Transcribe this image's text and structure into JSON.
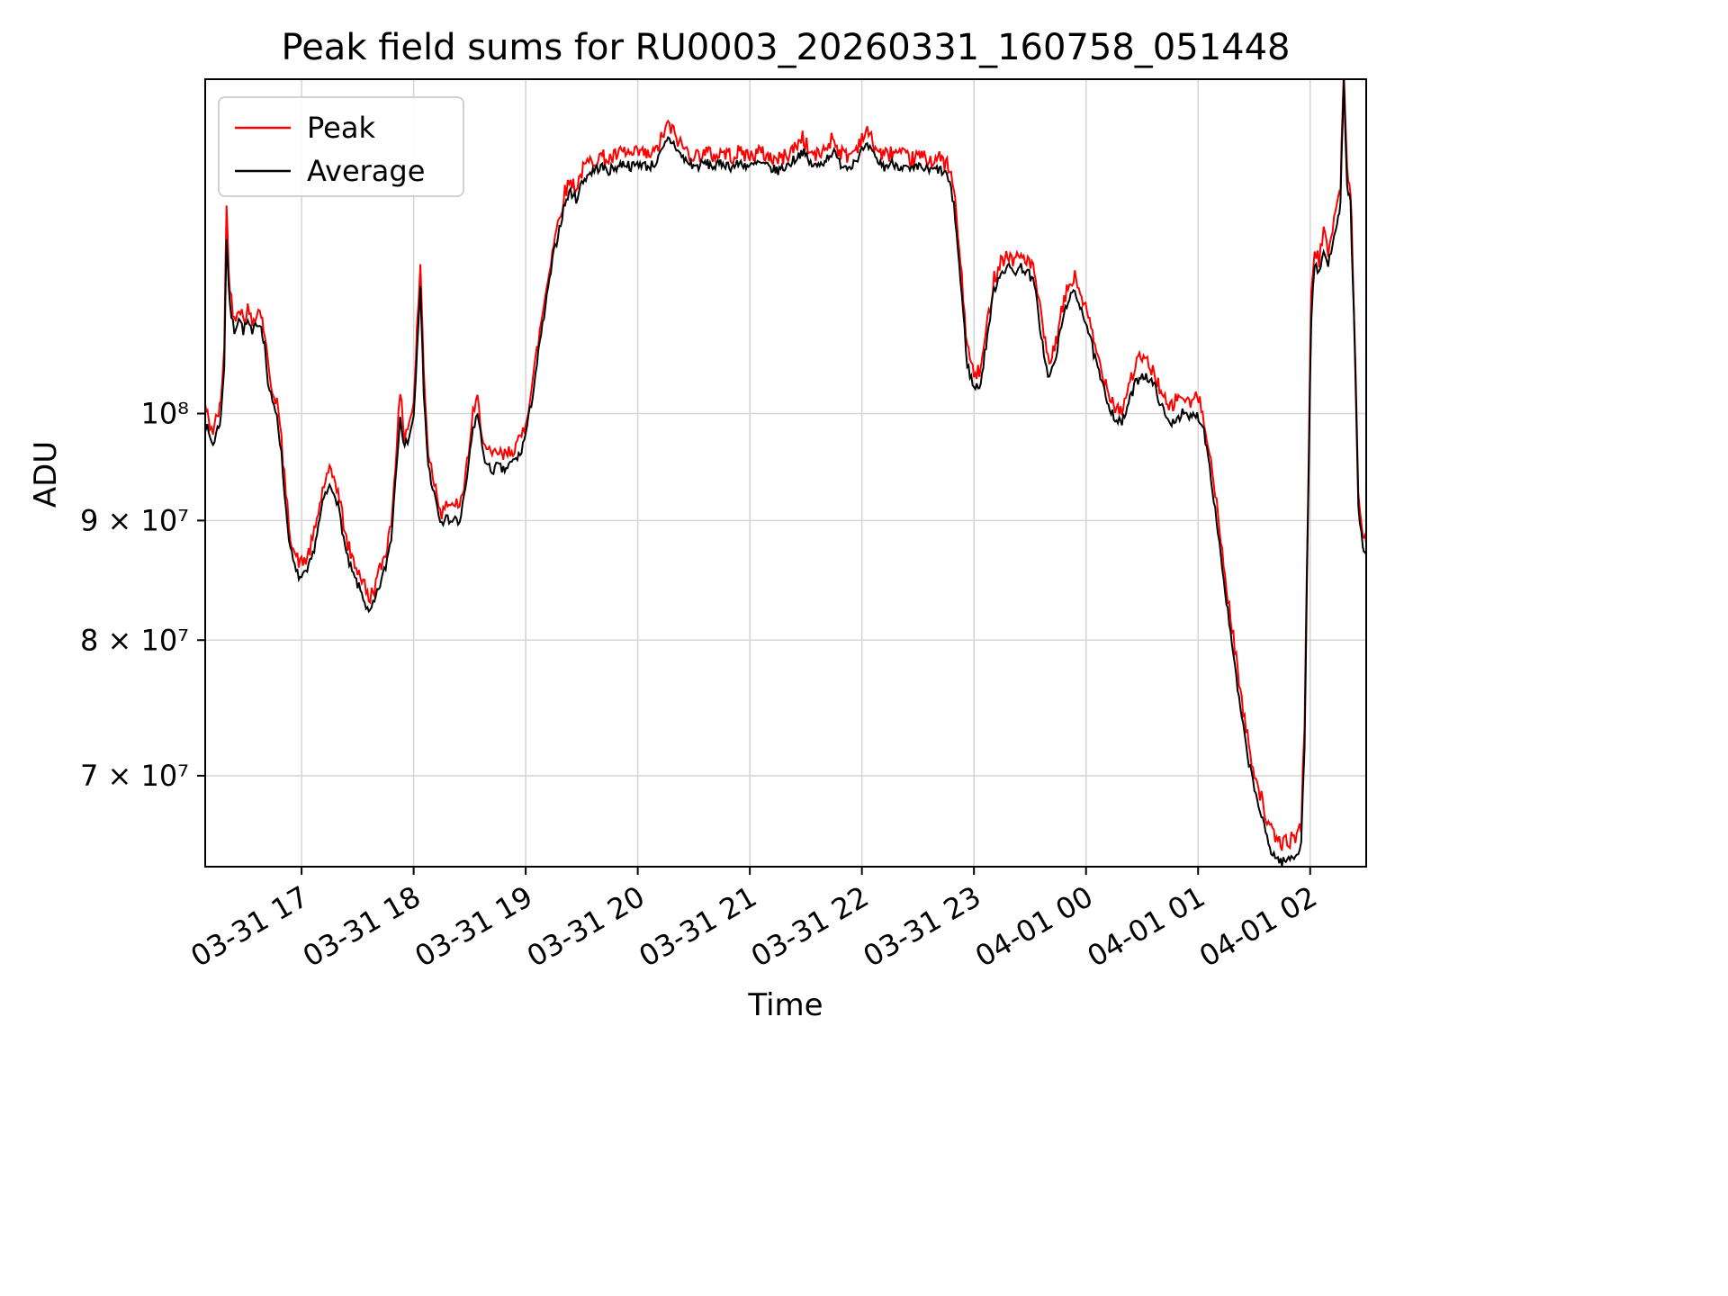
{
  "chart_data": {
    "type": "line",
    "title": "Peak field sums for RU0003_20260331_160758_051448",
    "xlabel": "Time",
    "ylabel": "ADU",
    "yscale": "log",
    "grid": true,
    "legend_position": "upper left",
    "value_scale": 10000000,
    "xlim": [
      16.14,
      26.5
    ],
    "ylim": [
      64000000,
      139000000
    ],
    "xticks": [
      {
        "hour": 17,
        "label": "03-31 17"
      },
      {
        "hour": 18,
        "label": "03-31 18"
      },
      {
        "hour": 19,
        "label": "03-31 19"
      },
      {
        "hour": 20,
        "label": "03-31 20"
      },
      {
        "hour": 21,
        "label": "03-31 21"
      },
      {
        "hour": 22,
        "label": "03-31 22"
      },
      {
        "hour": 23,
        "label": "03-31 23"
      },
      {
        "hour": 24,
        "label": "04-01 00"
      },
      {
        "hour": 25,
        "label": "04-01 01"
      },
      {
        "hour": 26,
        "label": "04-01 02"
      }
    ],
    "yticks": [
      {
        "value": 100000000,
        "label": "10⁸"
      },
      {
        "value": 90000000,
        "label": "9 × 10⁷"
      },
      {
        "value": 80000000,
        "label": "8 × 10⁷"
      },
      {
        "value": 70000000,
        "label": "7 × 10⁷"
      }
    ],
    "series_meta": [
      {
        "name": "Peak",
        "color": "#ff0000",
        "width": 2,
        "noise_amp": 0.008,
        "noise_bias": 0.003
      },
      {
        "name": "Average",
        "color": "#000000",
        "width": 2,
        "noise_amp": 0.005,
        "noise_bias": 0.0
      }
    ],
    "points_format": [
      "hour",
      "average_1e7ADU",
      "peak_1e7ADU"
    ],
    "points": [
      [
        16.14,
        9.95,
        10.05
      ],
      [
        16.17,
        9.8,
        9.9
      ],
      [
        16.21,
        9.7,
        9.8
      ],
      [
        16.25,
        9.85,
        9.95
      ],
      [
        16.28,
        9.95,
        10.05
      ],
      [
        16.31,
        10.5,
        10.7
      ],
      [
        16.33,
        11.9,
        12.2
      ],
      [
        16.36,
        11.1,
        11.25
      ],
      [
        16.4,
        10.85,
        10.95
      ],
      [
        16.44,
        11.0,
        11.1
      ],
      [
        16.48,
        10.85,
        10.95
      ],
      [
        16.52,
        10.95,
        11.05
      ],
      [
        16.56,
        10.8,
        10.9
      ],
      [
        16.6,
        10.95,
        11.05
      ],
      [
        16.64,
        10.9,
        11.0
      ],
      [
        16.67,
        10.7,
        10.8
      ],
      [
        16.7,
        10.3,
        10.45
      ],
      [
        16.74,
        10.1,
        10.2
      ],
      [
        16.78,
        10.0,
        10.1
      ],
      [
        16.82,
        9.6,
        9.7
      ],
      [
        16.86,
        9.1,
        9.2
      ],
      [
        16.9,
        8.75,
        8.85
      ],
      [
        16.95,
        8.55,
        8.65
      ],
      [
        17.0,
        8.5,
        8.6
      ],
      [
        17.05,
        8.55,
        8.65
      ],
      [
        17.1,
        8.7,
        8.8
      ],
      [
        17.15,
        8.95,
        9.05
      ],
      [
        17.2,
        9.2,
        9.3
      ],
      [
        17.25,
        9.3,
        9.4
      ],
      [
        17.3,
        9.25,
        9.35
      ],
      [
        17.35,
        9.0,
        9.1
      ],
      [
        17.4,
        8.7,
        8.8
      ],
      [
        17.45,
        8.55,
        8.65
      ],
      [
        17.5,
        8.45,
        8.55
      ],
      [
        17.55,
        8.35,
        8.45
      ],
      [
        17.6,
        8.2,
        8.3
      ],
      [
        17.65,
        8.3,
        8.4
      ],
      [
        17.7,
        8.45,
        8.55
      ],
      [
        17.75,
        8.6,
        8.7
      ],
      [
        17.8,
        8.85,
        8.95
      ],
      [
        17.85,
        9.55,
        9.7
      ],
      [
        17.88,
        10.0,
        10.15
      ],
      [
        17.92,
        9.65,
        9.75
      ],
      [
        17.96,
        9.8,
        9.9
      ],
      [
        18.0,
        9.95,
        10.05
      ],
      [
        18.03,
        10.6,
        10.8
      ],
      [
        18.06,
        11.3,
        11.55
      ],
      [
        18.09,
        10.2,
        10.4
      ],
      [
        18.13,
        9.5,
        9.6
      ],
      [
        18.17,
        9.3,
        9.4
      ],
      [
        18.21,
        9.1,
        9.2
      ],
      [
        18.25,
        8.95,
        9.05
      ],
      [
        18.29,
        9.05,
        9.15
      ],
      [
        18.33,
        8.95,
        9.05
      ],
      [
        18.37,
        9.05,
        9.15
      ],
      [
        18.41,
        8.95,
        9.05
      ],
      [
        18.45,
        9.2,
        9.3
      ],
      [
        18.49,
        9.5,
        9.6
      ],
      [
        18.53,
        9.85,
        9.95
      ],
      [
        18.57,
        10.0,
        10.1
      ],
      [
        18.61,
        9.7,
        9.8
      ],
      [
        18.65,
        9.5,
        9.6
      ],
      [
        18.7,
        9.45,
        9.55
      ],
      [
        18.75,
        9.5,
        9.6
      ],
      [
        18.8,
        9.45,
        9.55
      ],
      [
        18.85,
        9.5,
        9.6
      ],
      [
        18.9,
        9.55,
        9.65
      ],
      [
        18.95,
        9.6,
        9.7
      ],
      [
        19.0,
        9.8,
        9.9
      ],
      [
        19.05,
        10.1,
        10.2
      ],
      [
        19.1,
        10.5,
        10.6
      ],
      [
        19.15,
        10.9,
        11.0
      ],
      [
        19.2,
        11.3,
        11.4
      ],
      [
        19.25,
        11.7,
        11.8
      ],
      [
        19.3,
        12.0,
        12.1
      ],
      [
        19.35,
        12.3,
        12.4
      ],
      [
        19.4,
        12.45,
        12.55
      ],
      [
        19.45,
        12.35,
        12.45
      ],
      [
        19.5,
        12.55,
        12.65
      ],
      [
        19.55,
        12.65,
        12.75
      ],
      [
        19.6,
        12.7,
        12.8
      ],
      [
        19.67,
        12.75,
        12.85
      ],
      [
        19.74,
        12.7,
        12.8
      ],
      [
        19.81,
        12.75,
        12.85
      ],
      [
        19.88,
        12.8,
        12.9
      ],
      [
        19.95,
        12.75,
        12.85
      ],
      [
        20.02,
        12.8,
        12.9
      ],
      [
        20.09,
        12.75,
        12.85
      ],
      [
        20.16,
        12.8,
        12.9
      ],
      [
        20.22,
        12.95,
        13.1
      ],
      [
        20.27,
        13.1,
        13.25
      ],
      [
        20.32,
        13.05,
        13.15
      ],
      [
        20.38,
        12.9,
        13.0
      ],
      [
        20.45,
        12.8,
        12.9
      ],
      [
        20.52,
        12.75,
        12.85
      ],
      [
        20.6,
        12.8,
        12.9
      ],
      [
        20.68,
        12.75,
        12.85
      ],
      [
        20.76,
        12.8,
        12.9
      ],
      [
        20.84,
        12.75,
        12.85
      ],
      [
        20.92,
        12.8,
        12.9
      ],
      [
        21.0,
        12.75,
        12.85
      ],
      [
        21.08,
        12.8,
        12.9
      ],
      [
        21.16,
        12.75,
        12.85
      ],
      [
        21.24,
        12.7,
        12.8
      ],
      [
        21.32,
        12.75,
        12.85
      ],
      [
        21.4,
        12.85,
        12.95
      ],
      [
        21.47,
        12.95,
        13.1
      ],
      [
        21.53,
        12.8,
        12.9
      ],
      [
        21.6,
        12.75,
        12.85
      ],
      [
        21.68,
        12.85,
        12.95
      ],
      [
        21.74,
        12.95,
        13.1
      ],
      [
        21.8,
        12.8,
        12.9
      ],
      [
        21.88,
        12.75,
        12.85
      ],
      [
        21.95,
        12.85,
        12.95
      ],
      [
        22.0,
        12.95,
        13.1
      ],
      [
        22.06,
        13.0,
        13.15
      ],
      [
        22.12,
        12.85,
        12.95
      ],
      [
        22.2,
        12.75,
        12.85
      ],
      [
        22.28,
        12.8,
        12.9
      ],
      [
        22.36,
        12.75,
        12.85
      ],
      [
        22.44,
        12.7,
        12.8
      ],
      [
        22.52,
        12.75,
        12.85
      ],
      [
        22.6,
        12.7,
        12.8
      ],
      [
        22.68,
        12.72,
        12.82
      ],
      [
        22.76,
        12.65,
        12.75
      ],
      [
        22.82,
        12.3,
        12.45
      ],
      [
        22.88,
        11.4,
        11.55
      ],
      [
        22.94,
        10.5,
        10.65
      ],
      [
        23.0,
        10.25,
        10.35
      ],
      [
        23.06,
        10.3,
        10.4
      ],
      [
        23.12,
        10.8,
        10.9
      ],
      [
        23.18,
        11.3,
        11.4
      ],
      [
        23.24,
        11.5,
        11.6
      ],
      [
        23.3,
        11.55,
        11.65
      ],
      [
        23.36,
        11.5,
        11.6
      ],
      [
        23.42,
        11.55,
        11.65
      ],
      [
        23.48,
        11.5,
        11.6
      ],
      [
        23.54,
        11.35,
        11.45
      ],
      [
        23.6,
        10.8,
        10.95
      ],
      [
        23.66,
        10.35,
        10.5
      ],
      [
        23.72,
        10.5,
        10.6
      ],
      [
        23.78,
        10.9,
        11.0
      ],
      [
        23.84,
        11.2,
        11.3
      ],
      [
        23.9,
        11.25,
        11.4
      ],
      [
        23.96,
        11.1,
        11.2
      ],
      [
        24.02,
        10.85,
        10.95
      ],
      [
        24.08,
        10.55,
        10.65
      ],
      [
        24.14,
        10.3,
        10.4
      ],
      [
        24.2,
        10.1,
        10.2
      ],
      [
        24.26,
        9.95,
        10.05
      ],
      [
        24.32,
        9.9,
        10.0
      ],
      [
        24.38,
        10.1,
        10.25
      ],
      [
        24.44,
        10.3,
        10.45
      ],
      [
        24.5,
        10.4,
        10.55
      ],
      [
        24.56,
        10.35,
        10.45
      ],
      [
        24.62,
        10.25,
        10.35
      ],
      [
        24.68,
        10.05,
        10.15
      ],
      [
        24.74,
        9.9,
        10.0
      ],
      [
        24.8,
        9.95,
        10.1
      ],
      [
        24.86,
        10.0,
        10.15
      ],
      [
        24.92,
        9.95,
        10.05
      ],
      [
        24.98,
        10.0,
        10.15
      ],
      [
        25.04,
        9.9,
        10.0
      ],
      [
        25.09,
        9.6,
        9.7
      ],
      [
        25.14,
        9.2,
        9.3
      ],
      [
        25.19,
        8.8,
        8.9
      ],
      [
        25.24,
        8.4,
        8.5
      ],
      [
        25.29,
        8.05,
        8.15
      ],
      [
        25.34,
        7.7,
        7.85
      ],
      [
        25.39,
        7.4,
        7.5
      ],
      [
        25.44,
        7.15,
        7.25
      ],
      [
        25.49,
        6.95,
        7.05
      ],
      [
        25.54,
        6.8,
        6.9
      ],
      [
        25.59,
        6.65,
        6.75
      ],
      [
        25.64,
        6.52,
        6.62
      ],
      [
        25.7,
        6.45,
        6.55
      ],
      [
        25.76,
        6.43,
        6.53
      ],
      [
        25.82,
        6.45,
        6.55
      ],
      [
        25.88,
        6.48,
        6.58
      ],
      [
        25.92,
        6.55,
        6.65
      ],
      [
        25.95,
        7.2,
        7.35
      ],
      [
        25.98,
        9.0,
        9.15
      ],
      [
        26.01,
        11.0,
        11.15
      ],
      [
        26.04,
        11.6,
        11.75
      ],
      [
        26.08,
        11.45,
        11.6
      ],
      [
        26.12,
        11.75,
        11.9
      ],
      [
        26.16,
        11.55,
        11.7
      ],
      [
        26.2,
        11.85,
        12.0
      ],
      [
        26.24,
        12.1,
        12.25
      ],
      [
        26.27,
        12.3,
        12.45
      ],
      [
        26.3,
        13.85,
        13.95
      ],
      [
        26.33,
        12.5,
        12.65
      ],
      [
        26.36,
        12.3,
        12.45
      ],
      [
        26.39,
        11.0,
        11.1
      ],
      [
        26.43,
        9.1,
        9.2
      ],
      [
        26.47,
        8.75,
        8.85
      ],
      [
        26.5,
        8.7,
        8.8
      ]
    ]
  }
}
